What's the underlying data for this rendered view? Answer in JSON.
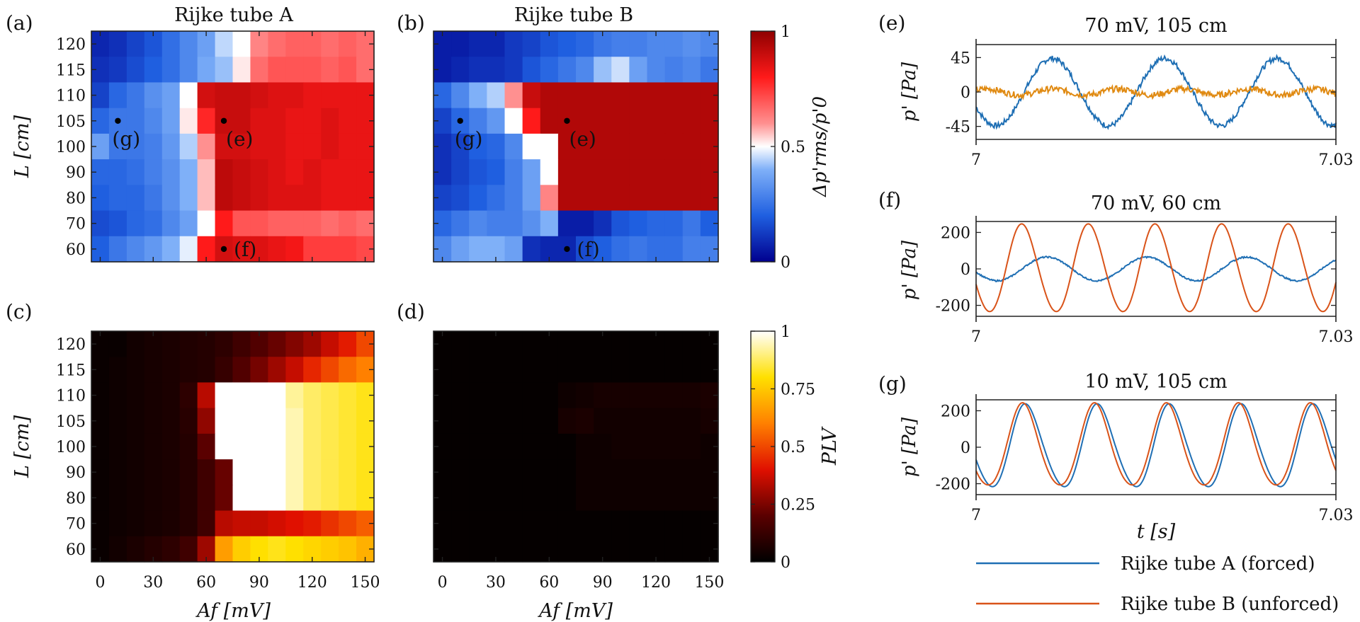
{
  "colors": {
    "series_a": "#1f6fb4",
    "series_b": "#d95319",
    "series_b_panel_e": "#e08a12",
    "axis": "#222222"
  },
  "colorbars": {
    "diverging": {
      "label": "Δp'rms/p'0",
      "ticks": [
        "0",
        "0.5",
        "1"
      ],
      "tick_values": [
        0,
        0.5,
        1
      ]
    },
    "plv": {
      "label": "PLV",
      "ticks": [
        "0",
        "0.25",
        "0.5",
        "0.75",
        "1"
      ],
      "tick_values": [
        0,
        0.25,
        0.5,
        0.75,
        1
      ]
    }
  },
  "legend": {
    "entries": [
      "Rijke tube A (forced)",
      "Rijke tube B (unforced)"
    ]
  },
  "chart_data": [
    {
      "type": "heatmap",
      "panel_label": "(a)",
      "title": "Rijke tube A",
      "ylabel": "L [cm]",
      "xlabel": "",
      "x_ticks": [
        "0",
        "30",
        "60",
        "90",
        "120",
        "150"
      ],
      "x_tick_values": [
        0,
        30,
        60,
        90,
        120,
        150
      ],
      "y_ticks": [
        "60",
        "70",
        "80",
        "90",
        "100",
        "105",
        "110",
        "115",
        "120"
      ],
      "x_columns": [
        0,
        10,
        20,
        30,
        40,
        50,
        60,
        70,
        80,
        90,
        100,
        110,
        120,
        130,
        140,
        150
      ],
      "y_rows": [
        120,
        115,
        110,
        105,
        100,
        90,
        80,
        70,
        60
      ],
      "colormap": "diverging",
      "values": [
        [
          0.08,
          0.1,
          0.14,
          0.18,
          0.24,
          0.3,
          0.36,
          0.45,
          0.5,
          0.62,
          0.66,
          0.68,
          0.68,
          0.66,
          0.68,
          0.66
        ],
        [
          0.1,
          0.12,
          0.16,
          0.2,
          0.24,
          0.3,
          0.38,
          0.42,
          0.52,
          0.66,
          0.7,
          0.7,
          0.7,
          0.68,
          0.7,
          0.66
        ],
        [
          0.14,
          0.22,
          0.26,
          0.32,
          0.36,
          0.5,
          0.88,
          0.9,
          0.9,
          0.88,
          0.86,
          0.86,
          0.84,
          0.84,
          0.84,
          0.84
        ],
        [
          0.22,
          0.26,
          0.26,
          0.3,
          0.36,
          0.52,
          0.78,
          0.9,
          0.9,
          0.86,
          0.86,
          0.84,
          0.84,
          0.86,
          0.84,
          0.84
        ],
        [
          0.36,
          0.26,
          0.26,
          0.28,
          0.34,
          0.44,
          0.6,
          0.88,
          0.88,
          0.86,
          0.86,
          0.84,
          0.84,
          0.86,
          0.84,
          0.84
        ],
        [
          0.22,
          0.22,
          0.24,
          0.28,
          0.32,
          0.4,
          0.56,
          0.92,
          0.9,
          0.88,
          0.86,
          0.84,
          0.86,
          0.84,
          0.84,
          0.84
        ],
        [
          0.2,
          0.22,
          0.22,
          0.26,
          0.32,
          0.4,
          0.56,
          0.92,
          0.9,
          0.88,
          0.86,
          0.86,
          0.86,
          0.84,
          0.84,
          0.84
        ],
        [
          0.16,
          0.18,
          0.22,
          0.24,
          0.3,
          0.36,
          0.5,
          0.8,
          0.7,
          0.7,
          0.68,
          0.68,
          0.68,
          0.66,
          0.68,
          0.66
        ],
        [
          0.2,
          0.26,
          0.3,
          0.34,
          0.4,
          0.48,
          0.8,
          0.88,
          0.86,
          0.86,
          0.84,
          0.82,
          0.74,
          0.74,
          0.74,
          0.72
        ]
      ],
      "markers": [
        {
          "label": "(g)",
          "x": 10,
          "L": 105
        },
        {
          "label": "(e)",
          "x": 70,
          "L": 105
        },
        {
          "label": "(f)",
          "x": 70,
          "L": 60
        }
      ]
    },
    {
      "type": "heatmap",
      "panel_label": "(b)",
      "title": "Rijke tube B",
      "ylabel": "",
      "xlabel": "",
      "x_ticks": [
        "0",
        "30",
        "60",
        "90",
        "120",
        "150"
      ],
      "x_tick_values": [
        0,
        30,
        60,
        90,
        120,
        150
      ],
      "y_ticks": [],
      "x_columns": [
        0,
        10,
        20,
        30,
        40,
        50,
        60,
        70,
        80,
        90,
        100,
        110,
        120,
        130,
        140,
        150
      ],
      "y_rows": [
        120,
        115,
        110,
        105,
        100,
        90,
        80,
        70,
        60
      ],
      "colormap": "diverging",
      "values": [
        [
          0.06,
          0.06,
          0.08,
          0.08,
          0.12,
          0.14,
          0.18,
          0.2,
          0.22,
          0.26,
          0.28,
          0.28,
          0.3,
          0.3,
          0.32,
          0.3
        ],
        [
          0.06,
          0.08,
          0.1,
          0.1,
          0.12,
          0.18,
          0.22,
          0.26,
          0.3,
          0.42,
          0.46,
          0.36,
          0.3,
          0.28,
          0.3,
          0.26
        ],
        [
          0.22,
          0.3,
          0.4,
          0.44,
          0.6,
          0.9,
          0.94,
          0.94,
          0.94,
          0.94,
          0.94,
          0.94,
          0.94,
          0.94,
          0.94,
          0.94
        ],
        [
          0.14,
          0.22,
          0.28,
          0.34,
          0.5,
          0.8,
          0.94,
          0.94,
          0.94,
          0.94,
          0.94,
          0.94,
          0.94,
          0.94,
          0.94,
          0.94
        ],
        [
          0.1,
          0.14,
          0.2,
          0.22,
          0.3,
          0.5,
          0.5,
          0.94,
          0.94,
          0.94,
          0.94,
          0.94,
          0.94,
          0.94,
          0.94,
          0.94
        ],
        [
          0.1,
          0.14,
          0.18,
          0.2,
          0.28,
          0.36,
          0.5,
          0.94,
          0.94,
          0.94,
          0.94,
          0.94,
          0.94,
          0.94,
          0.94,
          0.94
        ],
        [
          0.14,
          0.16,
          0.2,
          0.24,
          0.28,
          0.36,
          0.62,
          0.94,
          0.94,
          0.94,
          0.94,
          0.94,
          0.94,
          0.94,
          0.94,
          0.94
        ],
        [
          0.22,
          0.26,
          0.3,
          0.28,
          0.28,
          0.32,
          0.4,
          0.06,
          0.06,
          0.1,
          0.18,
          0.2,
          0.22,
          0.22,
          0.26,
          0.2
        ],
        [
          0.3,
          0.36,
          0.4,
          0.4,
          0.36,
          0.1,
          0.08,
          0.08,
          0.16,
          0.2,
          0.24,
          0.26,
          0.24,
          0.24,
          0.28,
          0.28
        ]
      ],
      "markers": [
        {
          "label": "(g)",
          "x": 10,
          "L": 105
        },
        {
          "label": "(e)",
          "x": 70,
          "L": 105
        },
        {
          "label": "(f)",
          "x": 70,
          "L": 60
        }
      ]
    },
    {
      "type": "heatmap",
      "panel_label": "(c)",
      "title": "",
      "ylabel": "L [cm]",
      "xlabel": "Af [mV]",
      "x_ticks": [
        "0",
        "30",
        "60",
        "90",
        "120",
        "150"
      ],
      "x_tick_values": [
        0,
        30,
        60,
        90,
        120,
        150
      ],
      "y_ticks": [
        "60",
        "70",
        "80",
        "90",
        "100",
        "105",
        "110",
        "115",
        "120"
      ],
      "x_columns": [
        0,
        10,
        20,
        30,
        40,
        50,
        60,
        70,
        80,
        90,
        100,
        110,
        120,
        130,
        140,
        150
      ],
      "y_rows": [
        120,
        115,
        110,
        105,
        100,
        90,
        80,
        70,
        60
      ],
      "colormap": "plv",
      "values": [
        [
          0.02,
          0.02,
          0.04,
          0.05,
          0.06,
          0.07,
          0.08,
          0.1,
          0.14,
          0.18,
          0.22,
          0.26,
          0.3,
          0.36,
          0.42,
          0.5
        ],
        [
          0.02,
          0.03,
          0.04,
          0.05,
          0.06,
          0.07,
          0.08,
          0.12,
          0.18,
          0.24,
          0.3,
          0.36,
          0.44,
          0.5,
          0.56,
          0.6
        ],
        [
          0.02,
          0.03,
          0.04,
          0.05,
          0.06,
          0.1,
          0.34,
          1.0,
          1.0,
          1.0,
          1.0,
          0.92,
          0.88,
          0.86,
          0.84,
          0.82
        ],
        [
          0.02,
          0.03,
          0.04,
          0.05,
          0.06,
          0.09,
          0.28,
          1.0,
          1.0,
          1.0,
          1.0,
          0.94,
          0.88,
          0.86,
          0.84,
          0.82
        ],
        [
          0.02,
          0.03,
          0.04,
          0.05,
          0.06,
          0.08,
          0.2,
          1.0,
          1.0,
          1.0,
          1.0,
          0.94,
          0.88,
          0.86,
          0.84,
          0.82
        ],
        [
          0.02,
          0.03,
          0.04,
          0.05,
          0.06,
          0.08,
          0.14,
          0.22,
          1.0,
          1.0,
          1.0,
          0.94,
          0.88,
          0.86,
          0.84,
          0.82
        ],
        [
          0.02,
          0.03,
          0.04,
          0.05,
          0.06,
          0.08,
          0.14,
          0.22,
          1.0,
          1.0,
          1.0,
          0.94,
          0.88,
          0.86,
          0.84,
          0.82
        ],
        [
          0.02,
          0.03,
          0.04,
          0.05,
          0.06,
          0.08,
          0.14,
          0.34,
          0.36,
          0.36,
          0.38,
          0.4,
          0.42,
          0.46,
          0.5,
          0.54
        ],
        [
          0.02,
          0.04,
          0.06,
          0.08,
          0.1,
          0.14,
          0.3,
          0.66,
          0.76,
          0.8,
          0.82,
          0.8,
          0.78,
          0.76,
          0.74,
          0.7
        ]
      ]
    },
    {
      "type": "heatmap",
      "panel_label": "(d)",
      "title": "",
      "ylabel": "",
      "xlabel": "Af [mV]",
      "x_ticks": [
        "0",
        "30",
        "60",
        "90",
        "120",
        "150"
      ],
      "x_tick_values": [
        0,
        30,
        60,
        90,
        120,
        150
      ],
      "y_ticks": [],
      "x_columns": [
        0,
        10,
        20,
        30,
        40,
        50,
        60,
        70,
        80,
        90,
        100,
        110,
        120,
        130,
        140,
        150
      ],
      "y_rows": [
        120,
        115,
        110,
        105,
        100,
        90,
        80,
        70,
        60
      ],
      "colormap": "plv",
      "values": [
        [
          0.01,
          0.01,
          0.01,
          0.01,
          0.01,
          0.01,
          0.01,
          0.01,
          0.01,
          0.01,
          0.01,
          0.01,
          0.01,
          0.01,
          0.01,
          0.01
        ],
        [
          0.01,
          0.01,
          0.01,
          0.01,
          0.01,
          0.01,
          0.01,
          0.01,
          0.01,
          0.01,
          0.01,
          0.01,
          0.01,
          0.01,
          0.01,
          0.01
        ],
        [
          0.01,
          0.01,
          0.01,
          0.01,
          0.01,
          0.01,
          0.01,
          0.03,
          0.04,
          0.05,
          0.05,
          0.05,
          0.05,
          0.05,
          0.05,
          0.06
        ],
        [
          0.01,
          0.01,
          0.01,
          0.01,
          0.01,
          0.01,
          0.01,
          0.05,
          0.06,
          0.04,
          0.04,
          0.04,
          0.04,
          0.04,
          0.04,
          0.05
        ],
        [
          0.01,
          0.01,
          0.01,
          0.01,
          0.01,
          0.01,
          0.01,
          0.01,
          0.03,
          0.03,
          0.04,
          0.04,
          0.04,
          0.04,
          0.04,
          0.03
        ],
        [
          0.01,
          0.01,
          0.01,
          0.01,
          0.01,
          0.01,
          0.01,
          0.01,
          0.03,
          0.03,
          0.03,
          0.03,
          0.03,
          0.03,
          0.03,
          0.03
        ],
        [
          0.01,
          0.01,
          0.01,
          0.01,
          0.01,
          0.01,
          0.01,
          0.01,
          0.03,
          0.03,
          0.03,
          0.03,
          0.03,
          0.03,
          0.03,
          0.03
        ],
        [
          0.01,
          0.01,
          0.01,
          0.01,
          0.01,
          0.01,
          0.01,
          0.01,
          0.01,
          0.01,
          0.01,
          0.01,
          0.01,
          0.01,
          0.01,
          0.01
        ],
        [
          0.01,
          0.01,
          0.01,
          0.01,
          0.01,
          0.01,
          0.01,
          0.01,
          0.01,
          0.01,
          0.01,
          0.01,
          0.01,
          0.01,
          0.01,
          0.01
        ]
      ]
    },
    {
      "type": "line",
      "panel_label": "(e)",
      "title": "70 mV, 105 cm",
      "ylabel": "p' [Pa]",
      "xlabel": "",
      "x_ticks": [
        "7",
        "7.03"
      ],
      "xlim": [
        7,
        7.03
      ],
      "ylim": [
        -62,
        62
      ],
      "y_ticks": [
        "45",
        "0",
        "-45"
      ],
      "y_tick_values": [
        45,
        0,
        -45
      ],
      "series": [
        {
          "name": "Rijke tube A (forced)",
          "color_key": "series_a",
          "amplitude": 44,
          "cycles": 3.2,
          "phase": 3.6,
          "noise": 3.5,
          "offset": 0
        },
        {
          "name": "Rijke tube B (unforced)",
          "color_key": "series_b_panel_e",
          "amplitude": 4,
          "cycles": 5.5,
          "phase": 0.5,
          "noise": 4,
          "offset": 0
        }
      ]
    },
    {
      "type": "line",
      "panel_label": "(f)",
      "title": "70 mV, 60 cm",
      "ylabel": "p' [Pa]",
      "xlabel": "",
      "x_ticks": [
        "7",
        "7.03"
      ],
      "xlim": [
        7,
        7.03
      ],
      "ylim": [
        -260,
        260
      ],
      "y_ticks": [
        "200",
        "0",
        "-200"
      ],
      "y_tick_values": [
        200,
        0,
        -200
      ],
      "series": [
        {
          "name": "Rijke tube A (forced)",
          "color_key": "series_a",
          "amplitude": 65,
          "cycles": 3.6,
          "phase": 3.4,
          "noise": 4,
          "offset": 0
        },
        {
          "name": "Rijke tube B (unforced)",
          "color_key": "series_b",
          "amplitude": 240,
          "cycles": 5.4,
          "phase": 3.5,
          "noise": 0,
          "offset": 10
        }
      ]
    },
    {
      "type": "line",
      "panel_label": "(g)",
      "title": "10 mV, 105 cm",
      "ylabel": "p' [Pa]",
      "xlabel": "t [s]",
      "x_ticks": [
        "7",
        "7.03"
      ],
      "xlim": [
        7,
        7.03
      ],
      "ylim": [
        -260,
        260
      ],
      "y_ticks": [
        "200",
        "0",
        "-200"
      ],
      "y_tick_values": [
        200,
        0,
        -200
      ],
      "series": [
        {
          "name": "Rijke tube A (forced)",
          "color_key": "series_a",
          "amplitude": 225,
          "cycles": 5.0,
          "phase": 3.45,
          "noise": 0,
          "offset": 20
        },
        {
          "name": "Rijke tube B (unforced)",
          "color_key": "series_b",
          "amplitude": 225,
          "cycles": 5.0,
          "phase": 3.75,
          "noise": 0,
          "offset": 20
        }
      ]
    }
  ]
}
